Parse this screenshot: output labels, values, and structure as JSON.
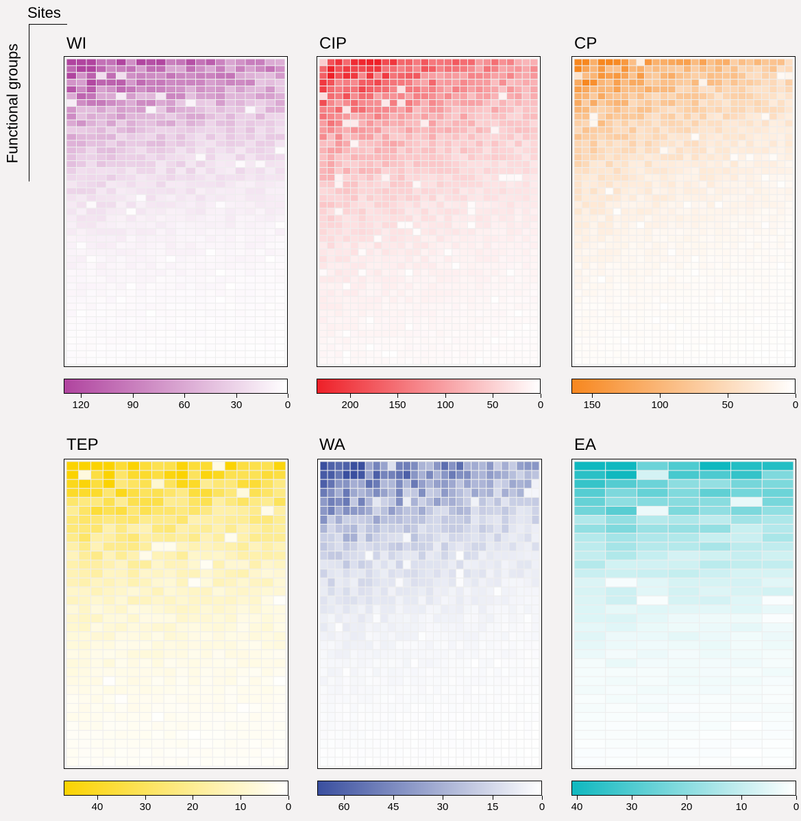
{
  "labels": {
    "sites": "Sites",
    "functional_groups": "Functional groups"
  },
  "chart_data": [
    {
      "type": "heatmap",
      "title": "WI",
      "color": "#b0449f",
      "rows": 45,
      "cols": 22,
      "max": 130,
      "colorbar_ticks": [
        120,
        90,
        60,
        30,
        0
      ]
    },
    {
      "type": "heatmap",
      "title": "CIP",
      "color": "#ee2028",
      "rows": 45,
      "cols": 28,
      "max": 235,
      "colorbar_ticks": [
        200,
        150,
        100,
        50,
        0
      ]
    },
    {
      "type": "heatmap",
      "title": "CP",
      "color": "#f7871f",
      "rows": 45,
      "cols": 28,
      "max": 165,
      "colorbar_ticks": [
        150,
        100,
        50,
        0
      ]
    },
    {
      "type": "heatmap",
      "title": "TEP",
      "color": "#fbd301",
      "rows": 34,
      "cols": 18,
      "max": 47,
      "colorbar_ticks": [
        40,
        30,
        20,
        10,
        0
      ]
    },
    {
      "type": "heatmap",
      "title": "WA",
      "color": "#3a4f9f",
      "rows": 34,
      "cols": 29,
      "max": 68,
      "colorbar_ticks": [
        60,
        45,
        30,
        15,
        0
      ]
    },
    {
      "type": "heatmap",
      "title": "EA",
      "color": "#0fb8bf",
      "rows": 34,
      "cols": 7,
      "max": 41,
      "colorbar_ticks": [
        40,
        30,
        20,
        10,
        0
      ]
    }
  ]
}
